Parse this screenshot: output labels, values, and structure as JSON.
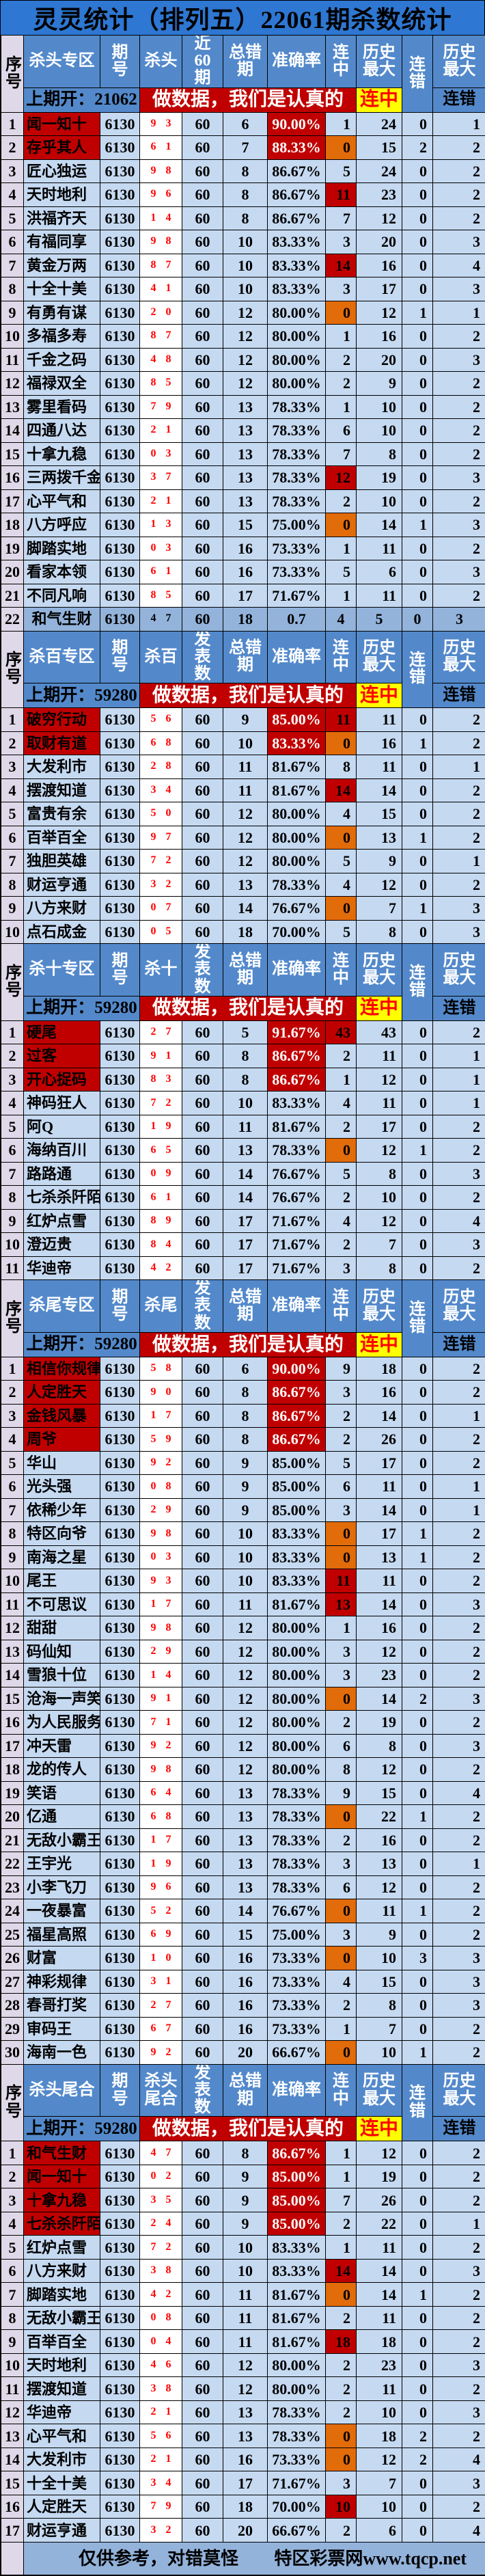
{
  "title": "灵灵统计（排列五）22061期杀数统计",
  "banner": "做数据，我们是认真的",
  "columns": {
    "xuhao": "序号",
    "qihao": "期号",
    "wrong": "总错期",
    "acc": "准确率",
    "lianzhong": "连中",
    "lishi_zuida": "历史最大",
    "liancuo": "连错"
  },
  "highlight": {
    "lianzhong": "连中",
    "liancuo": "连错"
  },
  "footer": {
    "left": "仅供参考，对错莫怪",
    "right": "特区彩票网www.tqcp.net"
  },
  "colors": {
    "title_blue": "#2E77D2",
    "header_blue": "#5389CB",
    "row_blue": "#C5D9F1",
    "mid_blue": "#93B3DB",
    "index_purple": "#DFD8E8",
    "alert_red": "#C00000",
    "alert_orange": "#E26B0A",
    "highlight_yellow": "#FFFF00",
    "kill_red": "#FF0000"
  },
  "row_fields": [
    "name",
    "kill",
    "wrong",
    "acc",
    "streak_hit",
    "max_hit",
    "streak_miss",
    "max_miss",
    "style"
  ],
  "style_legend": {
    "n": "name-red",
    "a": "accuracy-red",
    "r": "streak-red-bg",
    "o": "streak-orange-bg",
    "s": "summary-row"
  },
  "sections": [
    {
      "zone": "杀头专区",
      "kill_label": "杀头",
      "publish_label": "近60期",
      "last_open": "上期开：21062",
      "period": "6130",
      "publish": "60",
      "rows": [
        [
          "闻一知十",
          "9 3",
          "6",
          "90.00%",
          "1",
          "24",
          "0",
          "1",
          "na"
        ],
        [
          "存乎其人",
          "6 1",
          "7",
          "88.33%",
          "0",
          "15",
          "2",
          "2",
          "nao"
        ],
        [
          "匠心独运",
          "9 8",
          "8",
          "86.67%",
          "5",
          "24",
          "0",
          "2",
          ""
        ],
        [
          "天时地利",
          "9 6",
          "8",
          "86.67%",
          "11",
          "23",
          "0",
          "2",
          "r"
        ],
        [
          "洪福齐天",
          "1 4",
          "8",
          "86.67%",
          "7",
          "12",
          "0",
          "2",
          ""
        ],
        [
          "有福同享",
          "9 8",
          "10",
          "83.33%",
          "3",
          "20",
          "0",
          "3",
          ""
        ],
        [
          "黄金万两",
          "8 7",
          "10",
          "83.33%",
          "14",
          "16",
          "0",
          "4",
          "r"
        ],
        [
          "十全十美",
          "4 1",
          "10",
          "83.33%",
          "3",
          "17",
          "0",
          "3",
          ""
        ],
        [
          "有勇有谋",
          "2 0",
          "12",
          "80.00%",
          "0",
          "12",
          "1",
          "1",
          "o"
        ],
        [
          "多福多寿",
          "8 7",
          "12",
          "80.00%",
          "1",
          "16",
          "0",
          "2",
          ""
        ],
        [
          "千金之码",
          "4 8",
          "12",
          "80.00%",
          "2",
          "20",
          "0",
          "3",
          ""
        ],
        [
          "福禄双全",
          "8 5",
          "12",
          "80.00%",
          "2",
          "9",
          "0",
          "2",
          ""
        ],
        [
          "雾里看码",
          "7 9",
          "13",
          "78.33%",
          "1",
          "10",
          "0",
          "2",
          ""
        ],
        [
          "四通八达",
          "2 1",
          "13",
          "78.33%",
          "6",
          "10",
          "0",
          "2",
          ""
        ],
        [
          "十拿九稳",
          "0 3",
          "13",
          "78.33%",
          "7",
          "8",
          "0",
          "2",
          ""
        ],
        [
          "三两拨千金",
          "3 7",
          "13",
          "78.33%",
          "12",
          "19",
          "0",
          "3",
          "r"
        ],
        [
          "心平气和",
          "2 1",
          "13",
          "78.33%",
          "2",
          "10",
          "0",
          "2",
          ""
        ],
        [
          "八方呼应",
          "1 3",
          "15",
          "75.00%",
          "0",
          "14",
          "1",
          "3",
          "o"
        ],
        [
          "脚踏实地",
          "0 3",
          "16",
          "73.33%",
          "1",
          "11",
          "0",
          "2",
          ""
        ],
        [
          "看家本领",
          "6 1",
          "16",
          "73.33%",
          "5",
          "6",
          "0",
          "3",
          ""
        ],
        [
          "不同凡响",
          "8 5",
          "17",
          "71.67%",
          "1",
          "11",
          "0",
          "2",
          ""
        ],
        [
          "和气生财",
          "4 7",
          "18",
          "0.7",
          "4",
          "5",
          "0",
          "3",
          "s"
        ]
      ]
    },
    {
      "zone": "杀百专区",
      "kill_label": "杀百",
      "publish_label": "发表数",
      "last_open": "上期开：59280",
      "period": "6130",
      "publish": "60",
      "rows": [
        [
          "破穷行动",
          "5 6",
          "9",
          "85.00%",
          "11",
          "11",
          "0",
          "2",
          "nar"
        ],
        [
          "取财有道",
          "6 8",
          "10",
          "83.33%",
          "0",
          "16",
          "1",
          "2",
          "nao"
        ],
        [
          "大发利市",
          "2 8",
          "11",
          "81.67%",
          "8",
          "11",
          "0",
          "1",
          ""
        ],
        [
          "摆渡知道",
          "3 4",
          "11",
          "81.67%",
          "14",
          "14",
          "0",
          "2",
          "r"
        ],
        [
          "富贵有余",
          "5 0",
          "12",
          "80.00%",
          "4",
          "15",
          "0",
          "2",
          ""
        ],
        [
          "百举百全",
          "9 7",
          "12",
          "80.00%",
          "0",
          "13",
          "1",
          "2",
          "o"
        ],
        [
          "独胆英雄",
          "7 2",
          "12",
          "80.00%",
          "5",
          "9",
          "0",
          "1",
          ""
        ],
        [
          "财运亨通",
          "3 2",
          "13",
          "78.33%",
          "4",
          "12",
          "0",
          "2",
          ""
        ],
        [
          "八方来财",
          "0 7",
          "14",
          "76.67%",
          "0",
          "7",
          "1",
          "3",
          "o"
        ],
        [
          "点石成金",
          "0 5",
          "18",
          "70.00%",
          "5",
          "8",
          "0",
          "3",
          ""
        ]
      ]
    },
    {
      "zone": "杀十专区",
      "kill_label": "杀十",
      "publish_label": "发表数",
      "last_open": "上期开：59280",
      "period": "6130",
      "publish": "60",
      "rows": [
        [
          "硬尾",
          "2 7",
          "5",
          "91.67%",
          "43",
          "43",
          "0",
          "2",
          "nar"
        ],
        [
          "过客",
          "9 1",
          "8",
          "86.67%",
          "2",
          "11",
          "0",
          "1",
          "na"
        ],
        [
          "开心捉码",
          "8 3",
          "8",
          "86.67%",
          "1",
          "12",
          "0",
          "1",
          "na"
        ],
        [
          "神码狂人",
          "7 2",
          "10",
          "83.33%",
          "4",
          "11",
          "0",
          "1",
          ""
        ],
        [
          "阿Q",
          "1 9",
          "11",
          "81.67%",
          "2",
          "17",
          "0",
          "2",
          ""
        ],
        [
          "海纳百川",
          "6 5",
          "13",
          "78.33%",
          "0",
          "12",
          "1",
          "2",
          "o"
        ],
        [
          "路路通",
          "0 9",
          "14",
          "76.67%",
          "5",
          "8",
          "0",
          "3",
          ""
        ],
        [
          "七杀杀阡陌",
          "6 1",
          "14",
          "76.67%",
          "2",
          "10",
          "0",
          "2",
          ""
        ],
        [
          "红炉点雪",
          "8 9",
          "17",
          "71.67%",
          "4",
          "12",
          "0",
          "4",
          ""
        ],
        [
          "澄迈贵",
          "8 4",
          "17",
          "71.67%",
          "2",
          "7",
          "0",
          "3",
          ""
        ],
        [
          "华迪帝",
          "4 2",
          "17",
          "71.67%",
          "3",
          "8",
          "0",
          "2",
          ""
        ]
      ]
    },
    {
      "zone": "杀尾专区",
      "kill_label": "杀尾",
      "publish_label": "发表数",
      "last_open": "上期开：59280",
      "period": "6130",
      "publish": "60",
      "rows": [
        [
          "相信你规律",
          "5 8",
          "6",
          "90.00%",
          "9",
          "18",
          "0",
          "2",
          "na"
        ],
        [
          "人定胜天",
          "9 0",
          "8",
          "86.67%",
          "3",
          "16",
          "0",
          "2",
          "na"
        ],
        [
          "金钱风暴",
          "1 7",
          "8",
          "86.67%",
          "2",
          "14",
          "0",
          "1",
          "na"
        ],
        [
          "周爷",
          "5 9",
          "8",
          "86.67%",
          "2",
          "26",
          "0",
          "2",
          "na"
        ],
        [
          "华山",
          "9 2",
          "9",
          "85.00%",
          "5",
          "17",
          "0",
          "2",
          ""
        ],
        [
          "光头强",
          "0 8",
          "9",
          "85.00%",
          "6",
          "11",
          "0",
          "1",
          ""
        ],
        [
          "依稀少年",
          "2 9",
          "9",
          "85.00%",
          "3",
          "14",
          "0",
          "1",
          ""
        ],
        [
          "特区向爷",
          "9 8",
          "10",
          "83.33%",
          "0",
          "17",
          "1",
          "2",
          "o"
        ],
        [
          "南海之星",
          "0 3",
          "10",
          "83.33%",
          "0",
          "13",
          "1",
          "2",
          "o"
        ],
        [
          "尾王",
          "9 3",
          "10",
          "83.33%",
          "11",
          "11",
          "0",
          "2",
          "r"
        ],
        [
          "不可思议",
          "1 7",
          "11",
          "81.67%",
          "13",
          "14",
          "0",
          "3",
          "r"
        ],
        [
          "甜甜",
          "9 8",
          "12",
          "80.00%",
          "1",
          "16",
          "0",
          "2",
          ""
        ],
        [
          "码仙知",
          "2 9",
          "12",
          "80.00%",
          "3",
          "12",
          "0",
          "2",
          ""
        ],
        [
          "雪狼十位",
          "1 4",
          "12",
          "80.00%",
          "3",
          "23",
          "0",
          "2",
          ""
        ],
        [
          "沧海一声笑",
          "9 1",
          "12",
          "80.00%",
          "0",
          "14",
          "2",
          "3",
          "o"
        ],
        [
          "为人民服务",
          "7 1",
          "12",
          "80.00%",
          "2",
          "19",
          "0",
          "2",
          ""
        ],
        [
          "冲天雷",
          "9 2",
          "12",
          "80.00%",
          "6",
          "8",
          "0",
          "3",
          ""
        ],
        [
          "龙的传人",
          "9 8",
          "12",
          "80.00%",
          "8",
          "12",
          "0",
          "2",
          ""
        ],
        [
          "笑语",
          "6 4",
          "13",
          "78.33%",
          "9",
          "15",
          "0",
          "4",
          ""
        ],
        [
          "亿通",
          "6 8",
          "13",
          "78.33%",
          "0",
          "22",
          "1",
          "2",
          "o"
        ],
        [
          "无敌小霸王",
          "1 7",
          "13",
          "78.33%",
          "2",
          "16",
          "0",
          "2",
          ""
        ],
        [
          "王宇光",
          "1 9",
          "13",
          "78.33%",
          "3",
          "13",
          "0",
          "1",
          ""
        ],
        [
          "小李飞刀",
          "9 6",
          "13",
          "78.33%",
          "6",
          "12",
          "0",
          "2",
          ""
        ],
        [
          "一夜暴富",
          "5 2",
          "14",
          "76.67%",
          "0",
          "11",
          "1",
          "2",
          "o"
        ],
        [
          "福星高照",
          "6 9",
          "15",
          "75.00%",
          "3",
          "9",
          "0",
          "2",
          ""
        ],
        [
          "财富",
          "1 0",
          "16",
          "73.33%",
          "0",
          "10",
          "3",
          "3",
          "o"
        ],
        [
          "神彩规律",
          "3 1",
          "16",
          "73.33%",
          "4",
          "15",
          "0",
          "3",
          ""
        ],
        [
          "春哥打奖",
          "2 7",
          "16",
          "73.33%",
          "2",
          "8",
          "0",
          "3",
          ""
        ],
        [
          "审码王",
          "6 7",
          "16",
          "73.33%",
          "1",
          "7",
          "0",
          "2",
          ""
        ],
        [
          "海南一色",
          "9 2",
          "20",
          "66.67%",
          "0",
          "10",
          "1",
          "2",
          "o"
        ]
      ]
    },
    {
      "zone": "杀头尾合",
      "kill_label": "杀头尾合",
      "publish_label": "发表数",
      "last_open": "上期开：59280",
      "period": "6130",
      "publish": "60",
      "rows": [
        [
          "和气生财",
          "4 7",
          "8",
          "86.67%",
          "1",
          "12",
          "0",
          "2",
          "na"
        ],
        [
          "闻一知十",
          "0 2",
          "9",
          "85.00%",
          "1",
          "19",
          "0",
          "2",
          "na"
        ],
        [
          "十拿九稳",
          "3 5",
          "9",
          "85.00%",
          "7",
          "26",
          "0",
          "2",
          "na"
        ],
        [
          "七杀杀阡陌",
          "2 4",
          "9",
          "85.00%",
          "2",
          "22",
          "0",
          "1",
          "na"
        ],
        [
          "红炉点雪",
          "7 2",
          "10",
          "83.33%",
          "1",
          "11",
          "0",
          "2",
          ""
        ],
        [
          "八方来财",
          "3 8",
          "10",
          "83.33%",
          "14",
          "14",
          "0",
          "3",
          "r"
        ],
        [
          "脚踏实地",
          "4 2",
          "11",
          "81.67%",
          "0",
          "14",
          "1",
          "2",
          "o"
        ],
        [
          "无敌小霸王",
          "0 8",
          "11",
          "81.67%",
          "2",
          "11",
          "0",
          "2",
          ""
        ],
        [
          "百举百全",
          "0 4",
          "11",
          "81.67%",
          "18",
          "18",
          "0",
          "2",
          "r"
        ],
        [
          "天时地利",
          "4 6",
          "12",
          "80.00%",
          "2",
          "23",
          "0",
          "3",
          ""
        ],
        [
          "摆渡知道",
          "3 8",
          "12",
          "80.00%",
          "2",
          "11",
          "0",
          "2",
          ""
        ],
        [
          "华迪帝",
          "2 1",
          "13",
          "78.33%",
          "2",
          "10",
          "0",
          "3",
          ""
        ],
        [
          "心平气和",
          "5 6",
          "13",
          "78.33%",
          "0",
          "18",
          "2",
          "2",
          "o"
        ],
        [
          "大发利市",
          "2 1",
          "16",
          "73.33%",
          "0",
          "12",
          "2",
          "4",
          "o"
        ],
        [
          "十全十美",
          "3 4",
          "17",
          "71.67%",
          "3",
          "7",
          "0",
          "3",
          ""
        ],
        [
          "人定胜天",
          "7 9",
          "18",
          "70.00%",
          "10",
          "10",
          "0",
          "2",
          "r"
        ],
        [
          "财运亨通",
          "3 2",
          "20",
          "66.67%",
          "2",
          "6",
          "0",
          "4",
          ""
        ]
      ]
    }
  ]
}
